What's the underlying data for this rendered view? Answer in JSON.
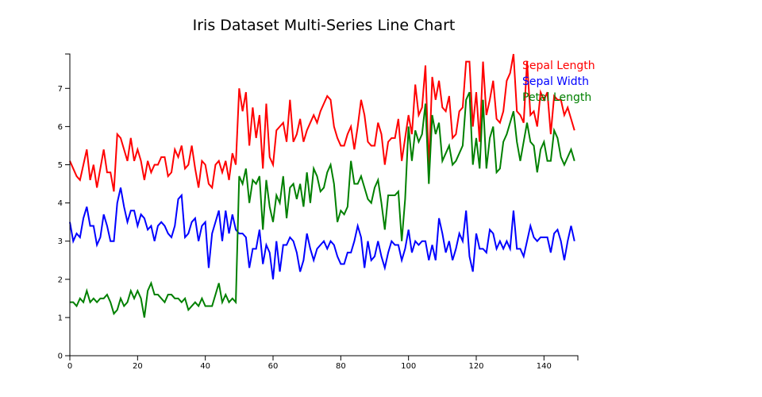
{
  "chart_data": {
    "type": "line",
    "title": "Iris Dataset Multi-Series Line Chart",
    "xlabel": "",
    "ylabel": "",
    "xlim": [
      0,
      150
    ],
    "ylim": [
      0,
      7.9
    ],
    "x_ticks": [
      0,
      20,
      40,
      60,
      80,
      100,
      120,
      140
    ],
    "y_ticks": [
      0,
      1,
      2,
      3,
      4,
      5,
      6,
      7
    ],
    "grid": false,
    "legend_position": "top-right",
    "series": [
      {
        "name": "Sepal Length",
        "color": "#ff0000",
        "values": [
          5.1,
          4.9,
          4.7,
          4.6,
          5.0,
          5.4,
          4.6,
          5.0,
          4.4,
          4.9,
          5.4,
          4.8,
          4.8,
          4.3,
          5.8,
          5.7,
          5.4,
          5.1,
          5.7,
          5.1,
          5.4,
          5.1,
          4.6,
          5.1,
          4.8,
          5.0,
          5.0,
          5.2,
          5.2,
          4.7,
          4.8,
          5.4,
          5.2,
          5.5,
          4.9,
          5.0,
          5.5,
          4.9,
          4.4,
          5.1,
          5.0,
          4.5,
          4.4,
          5.0,
          5.1,
          4.8,
          5.1,
          4.6,
          5.3,
          5.0,
          7.0,
          6.4,
          6.9,
          5.5,
          6.5,
          5.7,
          6.3,
          4.9,
          6.6,
          5.2,
          5.0,
          5.9,
          6.0,
          6.1,
          5.6,
          6.7,
          5.6,
          5.8,
          6.2,
          5.6,
          5.9,
          6.1,
          6.3,
          6.1,
          6.4,
          6.6,
          6.8,
          6.7,
          6.0,
          5.7,
          5.5,
          5.5,
          5.8,
          6.0,
          5.4,
          6.0,
          6.7,
          6.3,
          5.6,
          5.5,
          5.5,
          6.1,
          5.8,
          5.0,
          5.6,
          5.7,
          5.7,
          6.2,
          5.1,
          5.7,
          6.3,
          5.8,
          7.1,
          6.3,
          6.5,
          7.6,
          4.9,
          7.3,
          6.7,
          7.2,
          6.5,
          6.4,
          6.8,
          5.7,
          5.8,
          6.4,
          6.5,
          7.7,
          7.7,
          6.0,
          6.9,
          5.6,
          7.7,
          6.3,
          6.7,
          7.2,
          6.2,
          6.1,
          6.4,
          7.2,
          7.4,
          7.9,
          6.4,
          6.3,
          6.1,
          7.7,
          6.3,
          6.4,
          6.0,
          6.9,
          6.7,
          6.9,
          5.8,
          6.8,
          6.7,
          6.7,
          6.3,
          6.5,
          6.2,
          5.9
        ]
      },
      {
        "name": "Sepal Width",
        "color": "#0000ff",
        "values": [
          3.5,
          3.0,
          3.2,
          3.1,
          3.6,
          3.9,
          3.4,
          3.4,
          2.9,
          3.1,
          3.7,
          3.4,
          3.0,
          3.0,
          4.0,
          4.4,
          3.9,
          3.5,
          3.8,
          3.8,
          3.4,
          3.7,
          3.6,
          3.3,
          3.4,
          3.0,
          3.4,
          3.5,
          3.4,
          3.2,
          3.1,
          3.4,
          4.1,
          4.2,
          3.1,
          3.2,
          3.5,
          3.6,
          3.0,
          3.4,
          3.5,
          2.3,
          3.2,
          3.5,
          3.8,
          3.0,
          3.8,
          3.2,
          3.7,
          3.3,
          3.2,
          3.2,
          3.1,
          2.3,
          2.8,
          2.8,
          3.3,
          2.4,
          2.9,
          2.7,
          2.0,
          3.0,
          2.2,
          2.9,
          2.9,
          3.1,
          3.0,
          2.7,
          2.2,
          2.5,
          3.2,
          2.8,
          2.5,
          2.8,
          2.9,
          3.0,
          2.8,
          3.0,
          2.9,
          2.6,
          2.4,
          2.4,
          2.7,
          2.7,
          3.0,
          3.4,
          3.1,
          2.3,
          3.0,
          2.5,
          2.6,
          3.0,
          2.6,
          2.3,
          2.7,
          3.0,
          2.9,
          2.9,
          2.5,
          2.8,
          3.3,
          2.7,
          3.0,
          2.9,
          3.0,
          3.0,
          2.5,
          2.9,
          2.5,
          3.6,
          3.2,
          2.7,
          3.0,
          2.5,
          2.8,
          3.2,
          3.0,
          3.8,
          2.6,
          2.2,
          3.2,
          2.8,
          2.8,
          2.7,
          3.3,
          3.2,
          2.8,
          3.0,
          2.8,
          3.0,
          2.8,
          3.8,
          2.8,
          2.8,
          2.6,
          3.0,
          3.4,
          3.1,
          3.0,
          3.1,
          3.1,
          3.1,
          2.7,
          3.2,
          3.3,
          3.0,
          2.5,
          3.0,
          3.4,
          3.0
        ]
      },
      {
        "name": "Petal Length",
        "color": "#008000",
        "values": [
          1.4,
          1.4,
          1.3,
          1.5,
          1.4,
          1.7,
          1.4,
          1.5,
          1.4,
          1.5,
          1.5,
          1.6,
          1.4,
          1.1,
          1.2,
          1.5,
          1.3,
          1.4,
          1.7,
          1.5,
          1.7,
          1.5,
          1.0,
          1.7,
          1.9,
          1.6,
          1.6,
          1.5,
          1.4,
          1.6,
          1.6,
          1.5,
          1.5,
          1.4,
          1.5,
          1.2,
          1.3,
          1.4,
          1.3,
          1.5,
          1.3,
          1.3,
          1.3,
          1.6,
          1.9,
          1.4,
          1.6,
          1.4,
          1.5,
          1.4,
          4.7,
          4.5,
          4.9,
          4.0,
          4.6,
          4.5,
          4.7,
          3.3,
          4.6,
          3.9,
          3.5,
          4.2,
          4.0,
          4.7,
          3.6,
          4.4,
          4.5,
          4.1,
          4.5,
          3.9,
          4.8,
          4.0,
          4.9,
          4.7,
          4.3,
          4.4,
          4.8,
          5.0,
          4.5,
          3.5,
          3.8,
          3.7,
          3.9,
          5.1,
          4.5,
          4.5,
          4.7,
          4.4,
          4.1,
          4.0,
          4.4,
          4.6,
          4.0,
          3.3,
          4.2,
          4.2,
          4.2,
          4.3,
          3.0,
          4.1,
          6.0,
          5.1,
          5.9,
          5.6,
          5.8,
          6.6,
          4.5,
          6.3,
          5.8,
          6.1,
          5.1,
          5.3,
          5.5,
          5.0,
          5.1,
          5.3,
          5.5,
          6.7,
          6.9,
          5.0,
          5.7,
          4.9,
          6.7,
          4.9,
          5.7,
          6.0,
          4.8,
          4.9,
          5.6,
          5.8,
          6.1,
          6.4,
          5.6,
          5.1,
          5.6,
          6.1,
          5.6,
          5.5,
          4.8,
          5.4,
          5.6,
          5.1,
          5.1,
          5.9,
          5.7,
          5.2,
          5.0,
          5.2,
          5.4,
          5.1
        ]
      }
    ]
  }
}
